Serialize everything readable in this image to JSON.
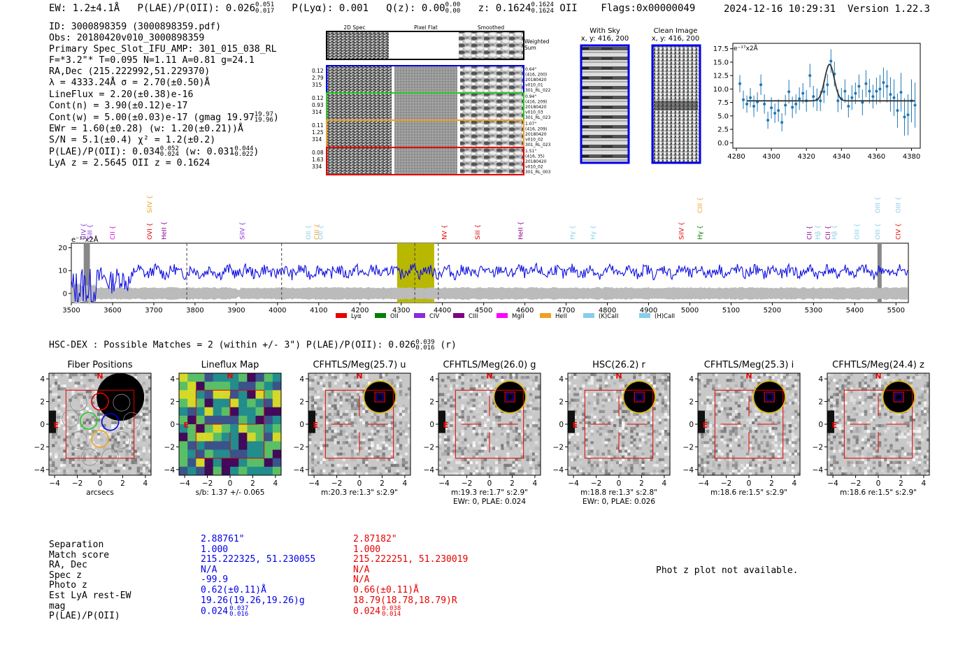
{
  "header": {
    "ew": "EW: 1.2±4.1Å",
    "plae_poii": "P(LAE)/P(OII): 0.026",
    "plae_sup": "0.051",
    "plae_sub": "0.017",
    "plya": "P(Lyα): 0.001",
    "qz": "Q(z): 0.00",
    "qz_sup": "0.00",
    "qz_sub": "0.00",
    "z": "z: 0.1624",
    "z_sup": "0.1624",
    "z_sub": "0.1624",
    "z_line": "OII",
    "flags": "Flags:0x00000049",
    "timestamp": "2024-12-16 10:29:31",
    "version": "Version 1.22.3"
  },
  "info": {
    "id": "ID: 3000898359 (3000898359.pdf)",
    "obs": "Obs: 20180420v010_3000898359",
    "primary": "Primary Spec_Slot_IFU_AMP: 301_015_038_RL",
    "f": "F=*3.2\"*  T=0.095  N=1.11  A=0.81  g=24.1",
    "radec": "RA,Dec (215.222992,51.229370)",
    "lambda": "λ = 4333.24Å   σ = 2.70(±0.50)Å",
    "lineflux": "LineFlux = 2.20(±0.38)e-16",
    "contn": "Cont(n) = 3.90(±0.12)e-17",
    "contw": "Cont(w) = 5.00(±0.03)e-17 (gmag 19.97",
    "contw_sup": "19.97",
    "contw_sub": "19.96",
    "contw_end": ")",
    "ewr": "EWr = 1.60(±0.28) (w: 1.20(±0.21))Å",
    "sn": "S/N = 5.1(±0.4)  χ² = 1.2(±0.2)",
    "plae": "P(LAE)/P(OII): 0.034",
    "plae_sup": "0.052",
    "plae_sub": "0.024",
    "plae_w": "(w: 0.031",
    "plae_w_sup": "0.044",
    "plae_w_sub": "0.022",
    "plae_w_end": ")",
    "lyaz": "LyA z = 2.5645   OII z = 0.1624"
  },
  "cutouts": {
    "col_2d": "2D Spec",
    "col_flat": "Pixel Flat",
    "col_smooth": "Smoothed",
    "weighted": "Weighted",
    "sum": "Sum",
    "rows": [
      {
        "left": [
          "0.12",
          "2.79",
          "315"
        ],
        "right": [
          "0.64\"",
          "(416, 200)",
          "20180420",
          "v010_01",
          "301_RL_022"
        ],
        "color": "#0000e6"
      },
      {
        "left": [
          "0.12",
          "0.93",
          "314"
        ],
        "right": [
          "0.94\"",
          "(416, 209)",
          "20180420",
          "v010_03",
          "301_RL_023"
        ],
        "color": "#22cc22"
      },
      {
        "left": [
          "0.11",
          "1.25",
          "314"
        ],
        "right": [
          "1.07\"",
          "(416, 209)",
          "20180420",
          "v010_02",
          "301_RL_023"
        ],
        "color": "#f0a020"
      },
      {
        "left": [
          "0.08",
          "1.63",
          "334"
        ],
        "right": [
          "1.51\"",
          "(416, 35)",
          "20180420",
          "v010_02",
          "301_RL_003"
        ],
        "color": "#e60000"
      }
    ]
  },
  "sky": {
    "with_sky_title": "With Sky",
    "with_sky_xy": "x, y: 416, 200",
    "clean_title": "Clean Image",
    "clean_xy": "x, y: 416, 200"
  },
  "fit_plot": {
    "unit_label": "e⁻¹⁷x2Å",
    "xticks": [
      "4280",
      "4300",
      "4320",
      "4340",
      "4360",
      "4380"
    ],
    "yticks": [
      "0.0",
      "2.5",
      "5.0",
      "7.5",
      "10.0",
      "12.5",
      "15.0",
      "17.5"
    ]
  },
  "spectrum": {
    "unit_label": "e⁻¹⁷x2Å",
    "yticks": [
      "0",
      "10",
      "20"
    ],
    "xticks": [
      "3500",
      "3600",
      "3700",
      "3800",
      "3900",
      "4000",
      "4100",
      "4200",
      "4300",
      "4400",
      "4500",
      "4600",
      "4700",
      "4800",
      "4900",
      "5000",
      "5100",
      "5200",
      "5300",
      "5400",
      "5500"
    ],
    "lines": [
      {
        "name": "CIV",
        "w": 3530,
        "color": "#8a2be2",
        "row": 0
      },
      {
        "name": "SiII",
        "w": 3545,
        "color": "#8a2be2",
        "row": 0
      },
      {
        "name": "CII",
        "w": 3600,
        "color": "#e000e0",
        "row": 0
      },
      {
        "name": "SiIV",
        "w": 3690,
        "color": "#f0a020",
        "row": 1
      },
      {
        "name": "OVI",
        "w": 3690,
        "color": "#e60000",
        "row": 0
      },
      {
        "name": "HeII",
        "w": 3725,
        "color": "#8b008b",
        "row": 0
      },
      {
        "name": "SiIV",
        "w": 3915,
        "color": "#8a2be2",
        "row": 0
      },
      {
        "name": "OII",
        "w": 4075,
        "color": "#87ceeb",
        "row": 0
      },
      {
        "name": "CIII",
        "w": 4095,
        "color": "#f0a020",
        "row": 0
      },
      {
        "name": "OII",
        "w": 4105,
        "color": "#87ceeb",
        "row": 0
      },
      {
        "name": "NV",
        "w": 4405,
        "color": "#e60000",
        "row": 0
      },
      {
        "name": "SiII",
        "w": 4485,
        "color": "#e60000",
        "row": 0
      },
      {
        "name": "HeII",
        "w": 4590,
        "color": "#8b008b",
        "row": 0
      },
      {
        "name": "Hγ",
        "w": 4715,
        "color": "#87ceeb",
        "row": 0
      },
      {
        "name": "Hγ",
        "w": 4765,
        "color": "#87ceeb",
        "row": 0
      },
      {
        "name": "SiIV",
        "w": 4980,
        "color": "#e60000",
        "row": 0
      },
      {
        "name": "CIII",
        "w": 5025,
        "color": "#f0a020",
        "row": 1
      },
      {
        "name": "Hγ",
        "w": 5025,
        "color": "#008000",
        "row": 0
      },
      {
        "name": "CII",
        "w": 5290,
        "color": "#8b008b",
        "row": 0
      },
      {
        "name": "Hβ",
        "w": 5310,
        "color": "#87ceeb",
        "row": 0
      },
      {
        "name": "CII",
        "w": 5335,
        "color": "#8b008b",
        "row": 0
      },
      {
        "name": "Hβ",
        "w": 5350,
        "color": "#87ceeb",
        "row": 0
      },
      {
        "name": "OIII",
        "w": 5405,
        "color": "#87ceeb",
        "row": 0
      },
      {
        "name": "OIII",
        "w": 5455,
        "color": "#87ceeb",
        "row": 1
      },
      {
        "name": "OIII",
        "w": 5455,
        "color": "#87ceeb",
        "row": 0
      },
      {
        "name": "OIII",
        "w": 5505,
        "color": "#87ceeb",
        "row": 1
      },
      {
        "name": "CIV",
        "w": 5505,
        "color": "#e60000",
        "row": 0
      }
    ],
    "legend": [
      {
        "name": "Lyα",
        "color": "#e60000"
      },
      {
        "name": "OII",
        "color": "#008000"
      },
      {
        "name": "CIV",
        "color": "#8a2be2"
      },
      {
        "name": "CIII",
        "color": "#800080"
      },
      {
        "name": "MgII",
        "color": "#ff00ff"
      },
      {
        "name": "HeII",
        "color": "#f0a020"
      },
      {
        "name": "(K)CaII",
        "color": "#87ceeb"
      },
      {
        "name": "(H)CaII",
        "color": "#87ceeb"
      }
    ]
  },
  "hsc": {
    "title": "HSC-DEX : Possible Matches = 2 (within +/- 3\")  P(LAE)/P(OII): 0.026",
    "sup": "0.039",
    "sub": "0.016",
    "band": "(r)"
  },
  "imaging": {
    "ticks": [
      "−4",
      "−2",
      "0",
      "2",
      "4"
    ],
    "north": "N",
    "east": "E",
    "panels": [
      {
        "title": "Fiber Positions",
        "cap1": "arcsecs",
        "cap2": "",
        "kind": "fiber"
      },
      {
        "title": "Lineflux Map",
        "cap1": "s/b: 1.37 +/- 0.065",
        "cap2": "",
        "kind": "flux"
      },
      {
        "title": "CFHTLS/Meg(25.7) u",
        "cap1": "m:20.3  re:1.3\"  s:2.9\"",
        "cap2": "",
        "kind": "img"
      },
      {
        "title": "CFHTLS/Meg(26.0) g",
        "cap1": "m:19.3  re:1.7\"  s:2.9\"",
        "cap2": "EWr: 0, PLAE: 0.024",
        "kind": "img"
      },
      {
        "title": "HSC(26.2) r",
        "cap1": "m:18.8  re:1.3\"  s:2.8\"",
        "cap2": "EWr: 0, PLAE: 0.026",
        "kind": "img"
      },
      {
        "title": "CFHTLS/Meg(25.3) i",
        "cap1": "m:18.6  re:1.5\"  s:2.9\"",
        "cap2": "",
        "kind": "img"
      },
      {
        "title": "CFHTLS/Meg(24.4) z",
        "cap1": "m:18.6  re:1.5\"  s:2.9\"",
        "cap2": "",
        "kind": "img"
      }
    ]
  },
  "matches": {
    "labels": [
      "Separation",
      "Match score",
      "RA, Dec",
      "Spec z",
      "Photo z",
      "Est LyA rest-EW",
      "mag",
      "P(LAE)/P(OII)"
    ],
    "m1": [
      "2.88761\"",
      "1.000",
      "215.222325, 51.230055",
      "N/A",
      "-99.9",
      "0.62(±0.11)Å",
      "19.26(19.26,19.26)g",
      "0.024"
    ],
    "m1_sup": "0.037",
    "m1_sub": "0.016",
    "m2": [
      "2.87182\"",
      "1.000",
      "215.222251, 51.230019",
      "N/A",
      "N/A",
      "0.66(±0.11)Å",
      "18.79(18.78,18.79)R",
      "0.024"
    ],
    "m2_sup": "0.038",
    "m2_sub": "0.014",
    "color1": "#0000e6",
    "color2": "#e60000",
    "photz_note": "Phot z plot not available."
  },
  "chart_data": [
    {
      "type": "scatter",
      "title": "",
      "xlabel": "",
      "ylabel": "e⁻¹⁷x2Å",
      "xlim": [
        4278,
        4385
      ],
      "ylim": [
        -1,
        18.5
      ],
      "series": [
        {
          "x": [
            4282,
            4284,
            4286,
            4288,
            4290,
            4292,
            4294,
            4296,
            4298,
            4300,
            4302,
            4304,
            4306,
            4308,
            4310,
            4312,
            4314,
            4316,
            4318,
            4320,
            4322,
            4324,
            4326,
            4328,
            4330,
            4332,
            4334,
            4336,
            4338,
            4340,
            4342,
            4344,
            4346,
            4348,
            4350,
            4352,
            4354,
            4356,
            4358,
            4360,
            4362,
            4364,
            4366,
            4368,
            4370,
            4372,
            4374,
            4376,
            4378,
            4380,
            4382
          ],
          "y": [
            11.0,
            8.0,
            7.2,
            8.4,
            6.8,
            7.6,
            10.8,
            7.2,
            4.2,
            6.5,
            5.5,
            6.0,
            3.8,
            7.0,
            9.5,
            6.6,
            7.2,
            8.2,
            9.2,
            7.8,
            12.5,
            8.6,
            8.0,
            7.8,
            9.5,
            10.8,
            15.2,
            12.8,
            7.8,
            8.2,
            9.6,
            6.8,
            8.4,
            9.2,
            10.5,
            7.5,
            11.0,
            9.6,
            8.6,
            9.6,
            10.0,
            11.2,
            10.5,
            9.0,
            8.4,
            6.0,
            9.4,
            4.8,
            5.2,
            7.8,
            7.0
          ],
          "yerr": [
            1.6,
            1.7,
            1.6,
            1.8,
            2.0,
            1.8,
            1.9,
            1.8,
            1.6,
            2.0,
            1.8,
            2.1,
            1.7,
            1.9,
            2.2,
            2.0,
            1.8,
            2.1,
            1.9,
            2.0,
            2.2,
            2.0,
            2.1,
            1.9,
            2.1,
            2.0,
            2.2,
            2.3,
            2.1,
            2.0,
            2.2,
            2.1,
            2.3,
            2.0,
            2.2,
            2.4,
            2.5,
            2.3,
            2.2,
            2.5,
            2.6,
            2.8,
            3.0,
            3.2,
            3.4,
            3.2,
            3.6,
            3.5,
            3.8,
            4.0,
            4.2
          ]
        }
      ],
      "fit": {
        "continuum": 7.8,
        "amplitude": 6.8,
        "center": 4333.2,
        "sigma": 2.7
      }
    },
    {
      "type": "line",
      "title": "",
      "xlabel": "",
      "ylabel": "e⁻¹⁷x2Å",
      "xlim": [
        3500,
        5530
      ],
      "ylim": [
        -4,
        22
      ],
      "series": [
        {
          "name": "",
          "continuum": 9.5,
          "noise": 2.5
        }
      ],
      "highlight_range": [
        4290,
        4380
      ],
      "highlight_line": 4333,
      "dashed_lines": [
        3780,
        4010,
        4390
      ],
      "masked": [
        [
          3530,
          3545
        ],
        [
          5455,
          5465
        ]
      ]
    }
  ]
}
